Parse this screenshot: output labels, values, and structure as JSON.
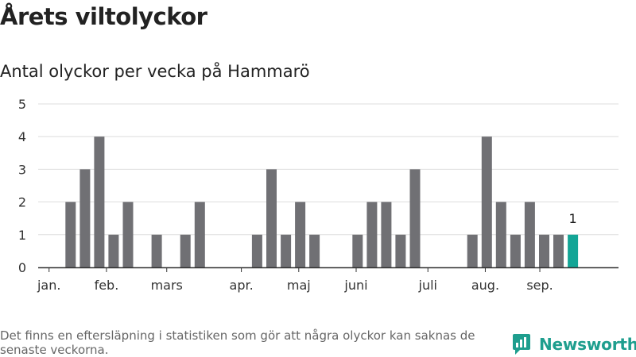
{
  "header": {
    "title": "Årets viltolyckor",
    "subtitle": "Antal olyckor per vecka på Hammarö"
  },
  "footer": {
    "note": "Det finns en eftersläpning i statistiken som gör att några olyckor kan saknas de senaste veckorna.",
    "brand": "Newsworthy"
  },
  "colors": {
    "bar": "#707074",
    "highlight": "#13a596",
    "grid": "#dddddd",
    "axis": "#333333",
    "brand": "#1e9e8e"
  },
  "chart_data": {
    "type": "bar",
    "title": "Årets viltolyckor",
    "subtitle": "Antal olyckor per vecka på Hammarö",
    "weeks": [
      1,
      2,
      3,
      4,
      5,
      6,
      7,
      8,
      9,
      10,
      11,
      12,
      13,
      14,
      15,
      16,
      17,
      18,
      19,
      20,
      21,
      22,
      23,
      24,
      25,
      26,
      27,
      28,
      29,
      30,
      31,
      32,
      33,
      34,
      35,
      36,
      37,
      38
    ],
    "values": [
      0,
      0,
      2,
      3,
      4,
      1,
      2,
      0,
      1,
      0,
      1,
      2,
      0,
      0,
      0,
      1,
      3,
      1,
      2,
      1,
      0,
      0,
      1,
      2,
      2,
      1,
      3,
      0,
      0,
      0,
      1,
      4,
      2,
      1,
      2,
      1,
      1,
      1
    ],
    "highlight_last": 1,
    "last_label": "1",
    "ylim": [
      0,
      5
    ],
    "yticks": [
      0,
      1,
      2,
      3,
      4,
      5
    ],
    "month_labels": [
      {
        "label": "jan.",
        "week": 1.5
      },
      {
        "label": "feb.",
        "week": 5.5
      },
      {
        "label": "mars",
        "week": 9.7
      },
      {
        "label": "apr.",
        "week": 14.9
      },
      {
        "label": "maj",
        "week": 18.9
      },
      {
        "label": "juni",
        "week": 22.9
      },
      {
        "label": "juli",
        "week": 27.9
      },
      {
        "label": "aug.",
        "week": 31.9
      },
      {
        "label": "sep.",
        "week": 35.7
      }
    ],
    "grid": true,
    "legend": "none"
  }
}
